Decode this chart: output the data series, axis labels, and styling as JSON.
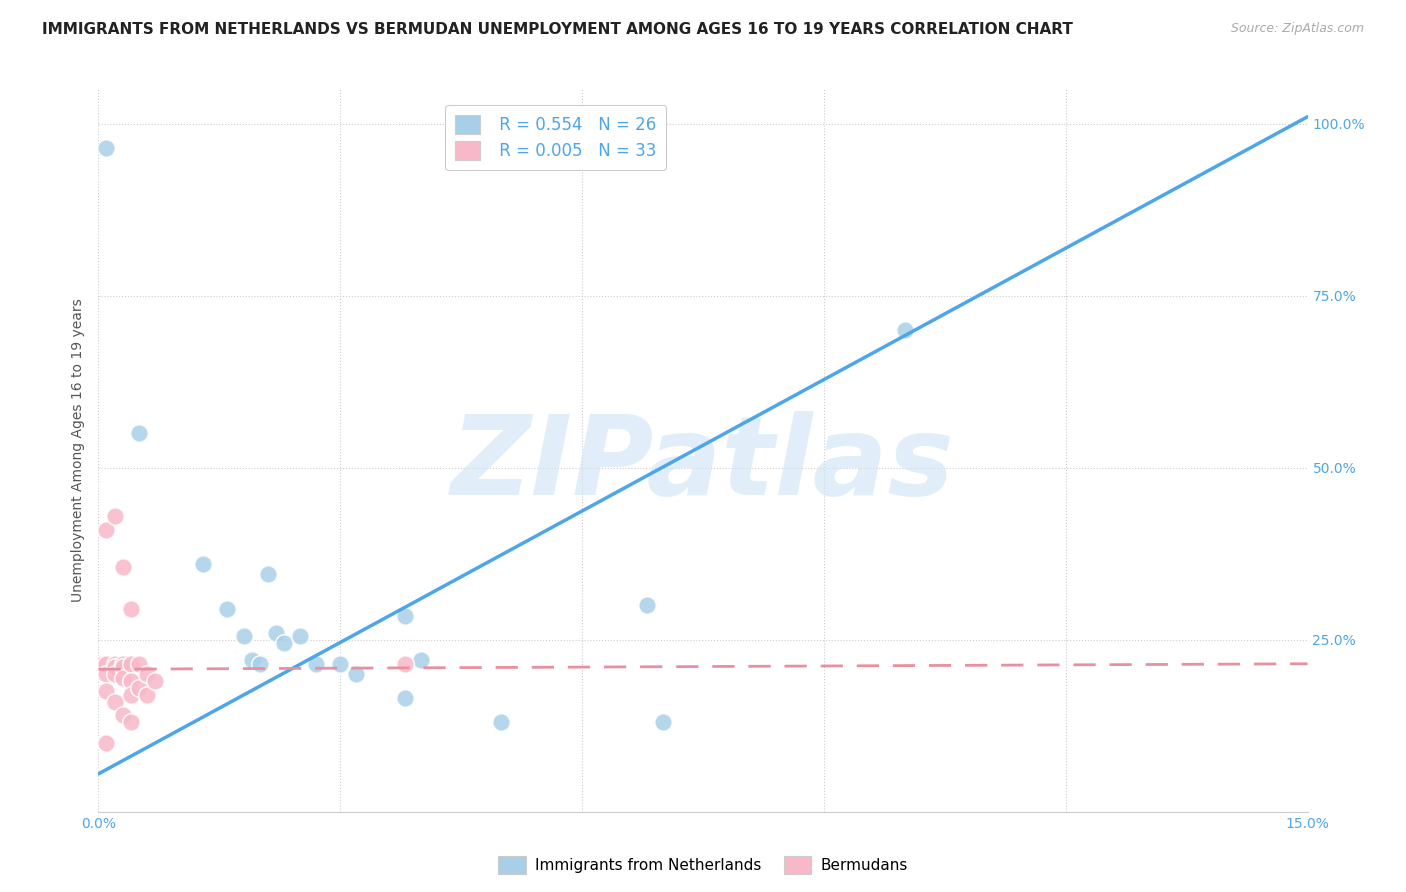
{
  "title": "IMMIGRANTS FROM NETHERLANDS VS BERMUDAN UNEMPLOYMENT AMONG AGES 16 TO 19 YEARS CORRELATION CHART",
  "source": "Source: ZipAtlas.com",
  "ylabel": "Unemployment Among Ages 16 to 19 years",
  "xlim": [
    0.0,
    0.15
  ],
  "ylim": [
    0.0,
    1.05
  ],
  "xticks": [
    0.0,
    0.03,
    0.06,
    0.09,
    0.12,
    0.15
  ],
  "xticklabels": [
    "0.0%",
    "",
    "",
    "",
    "",
    "15.0%"
  ],
  "yticks": [
    0.25,
    0.5,
    0.75,
    1.0
  ],
  "yticklabels": [
    "25.0%",
    "50.0%",
    "75.0%",
    "100.0%"
  ],
  "background_color": "#ffffff",
  "watermark_text": "ZIPatlas",
  "blue_R": "0.554",
  "blue_N": "26",
  "pink_R": "0.005",
  "pink_N": "33",
  "blue_scatter_x": [
    0.001,
    0.013,
    0.016,
    0.018,
    0.019,
    0.02,
    0.021,
    0.022,
    0.023,
    0.025,
    0.027,
    0.03,
    0.032,
    0.038,
    0.04,
    0.038,
    0.05,
    0.068,
    0.07,
    0.1,
    0.005
  ],
  "blue_scatter_y": [
    0.965,
    0.36,
    0.295,
    0.255,
    0.22,
    0.215,
    0.345,
    0.26,
    0.245,
    0.255,
    0.215,
    0.215,
    0.2,
    0.285,
    0.22,
    0.165,
    0.13,
    0.3,
    0.13,
    0.7,
    0.55
  ],
  "pink_scatter_x": [
    0.0005,
    0.001,
    0.001,
    0.001,
    0.001,
    0.002,
    0.002,
    0.002,
    0.002,
    0.003,
    0.003,
    0.003,
    0.003,
    0.004,
    0.004,
    0.004,
    0.004,
    0.005,
    0.005,
    0.006,
    0.006,
    0.007,
    0.038,
    0.001,
    0.002,
    0.003,
    0.004
  ],
  "pink_scatter_y": [
    0.215,
    0.215,
    0.2,
    0.175,
    0.1,
    0.215,
    0.21,
    0.2,
    0.16,
    0.215,
    0.21,
    0.195,
    0.14,
    0.215,
    0.19,
    0.17,
    0.13,
    0.215,
    0.18,
    0.2,
    0.17,
    0.19,
    0.215,
    0.41,
    0.43,
    0.355,
    0.295
  ],
  "blue_line_x": [
    0.0,
    0.15
  ],
  "blue_line_y": [
    0.055,
    1.01
  ],
  "pink_line_x": [
    0.0,
    0.15
  ],
  "pink_line_y": [
    0.207,
    0.215
  ],
  "blue_color": "#a8cfe8",
  "pink_color": "#f9b8c8",
  "blue_line_color": "#4da6e8",
  "pink_line_color": "#e8909f",
  "title_fontsize": 11,
  "axis_label_fontsize": 10,
  "tick_fontsize": 10,
  "legend_fontsize": 12,
  "marker_size": 160
}
